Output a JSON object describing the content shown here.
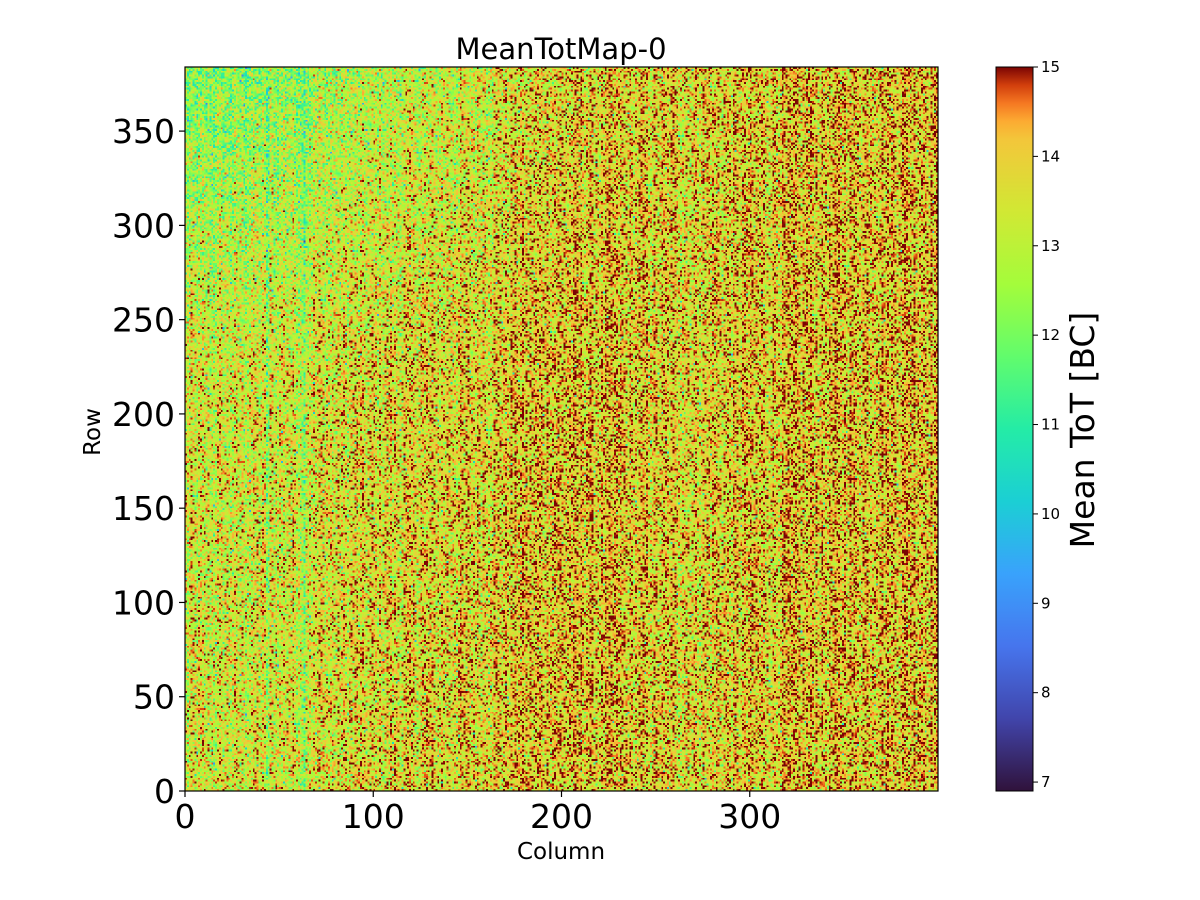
{
  "chart_data": {
    "type": "heatmap",
    "title": "MeanTotMap-0",
    "xlabel": "Column",
    "ylabel": "Row",
    "xlim": [
      0,
      400
    ],
    "ylim": [
      0,
      384
    ],
    "xticks": [
      0,
      100,
      200,
      300
    ],
    "yticks": [
      0,
      50,
      100,
      150,
      200,
      250,
      300,
      350
    ],
    "xtick_labels": [
      "0",
      "100",
      "200",
      "300"
    ],
    "ytick_labels": [
      "0",
      "50",
      "100",
      "150",
      "200",
      "250",
      "300",
      "350"
    ],
    "grid": false,
    "colorbar": {
      "label": "Mean ToT [BC]",
      "vmin": 6.9,
      "vmax": 15,
      "ticks": [
        7,
        8,
        9,
        10,
        11,
        12,
        13,
        14,
        15
      ],
      "tick_labels": [
        "7",
        "8",
        "9",
        "10",
        "11",
        "12",
        "13",
        "14",
        "15"
      ],
      "colormap": "turbo"
    },
    "value_summary": {
      "typical_range": [
        11,
        15
      ],
      "mean_approx": 13.6,
      "note": "values mostly 12–15 BC; lower (greener) values in upper-left region and along some vertical column stripes"
    }
  }
}
